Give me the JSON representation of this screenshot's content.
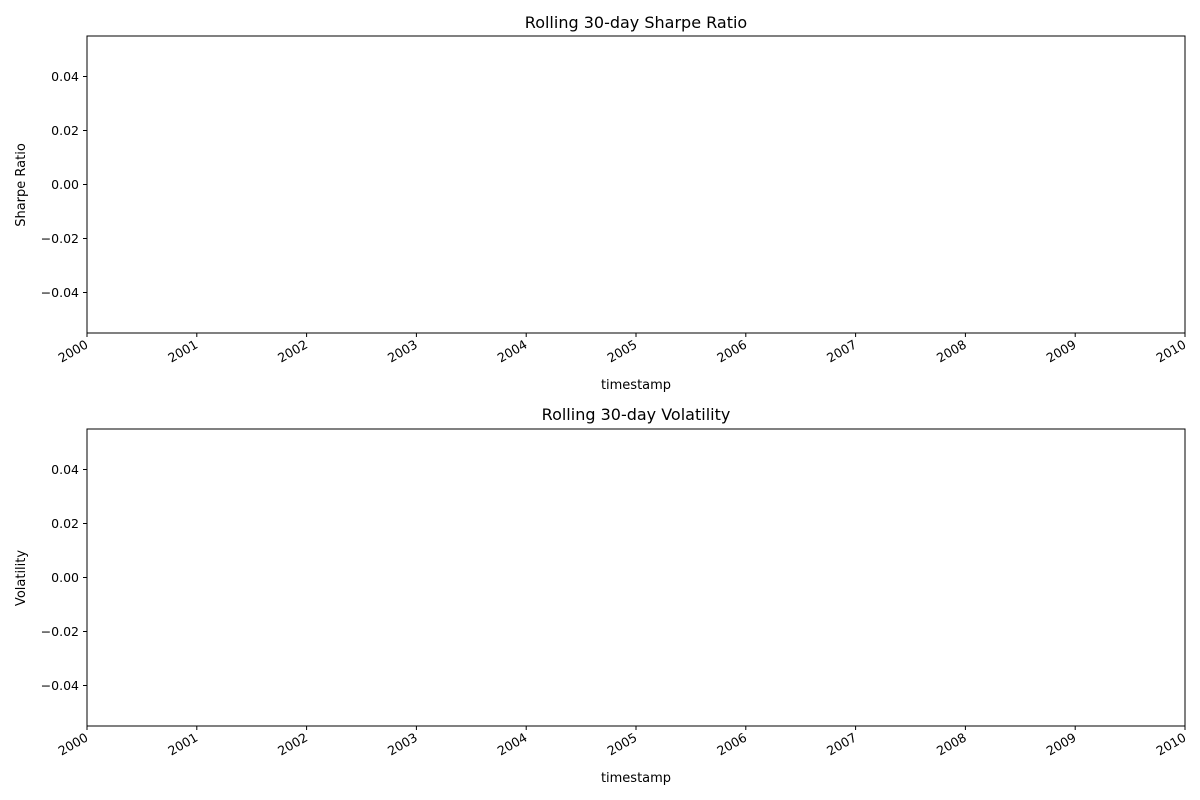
{
  "chart_data": [
    {
      "type": "line",
      "title": "Rolling 30-day Sharpe Ratio",
      "xlabel": "timestamp",
      "ylabel": "Sharpe Ratio",
      "xlim": [
        2000,
        2010
      ],
      "x_ticks": [
        "2000",
        "2001",
        "2002",
        "2003",
        "2004",
        "2005",
        "2006",
        "2007",
        "2008",
        "2009",
        "2010"
      ],
      "ylim": [
        -0.055,
        0.055
      ],
      "y_ticks": [
        -0.04,
        -0.02,
        0.0,
        0.02,
        0.04
      ],
      "y_tick_labels": [
        "−0.04",
        "−0.02",
        "0.00",
        "0.02",
        "0.04"
      ],
      "grid": false,
      "series": []
    },
    {
      "type": "line",
      "title": "Rolling 30-day Volatility",
      "xlabel": "timestamp",
      "ylabel": "Volatility",
      "xlim": [
        2000,
        2010
      ],
      "x_ticks": [
        "2000",
        "2001",
        "2002",
        "2003",
        "2004",
        "2005",
        "2006",
        "2007",
        "2008",
        "2009",
        "2010"
      ],
      "ylim": [
        -0.055,
        0.055
      ],
      "y_ticks": [
        -0.04,
        -0.02,
        0.0,
        0.02,
        0.04
      ],
      "y_tick_labels": [
        "−0.04",
        "−0.02",
        "0.00",
        "0.02",
        "0.04"
      ],
      "grid": false,
      "series": []
    }
  ]
}
